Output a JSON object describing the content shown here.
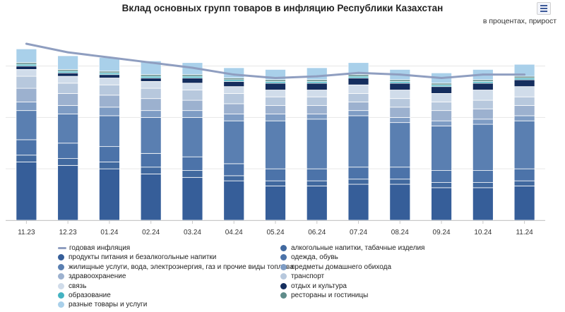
{
  "title": "Вклад основных групп товаров в инфляцию Республики Казахстан",
  "subtitle": "в процентах, прирост",
  "menu_icon": "hamburger-menu-icon",
  "chart_data": {
    "type": "bar",
    "stacked": true,
    "categories": [
      "11.23",
      "12.23",
      "01.24",
      "02.24",
      "03.24",
      "04.24",
      "05.24",
      "06.24",
      "07.24",
      "08.24",
      "09.24",
      "10.24",
      "11.24"
    ],
    "ylim": [
      0,
      11
    ],
    "grid": true,
    "legend_position": "bottom",
    "line": {
      "name": "годовая инфляция",
      "color": "#8f9ec0",
      "values": [
        10.3,
        9.8,
        9.5,
        9.2,
        8.9,
        8.5,
        8.3,
        8.4,
        8.6,
        8.5,
        8.3,
        8.5,
        8.5
      ]
    },
    "series": [
      {
        "name": "продукты питания и безалкогольные напитки",
        "color": "#365e99",
        "values": [
          3.4,
          3.2,
          3.0,
          2.7,
          2.5,
          2.3,
          2.0,
          2.0,
          2.1,
          2.1,
          1.9,
          1.9,
          2.0
        ]
      },
      {
        "name": "алкогольные напитки, табачные изделия",
        "color": "#41699f",
        "values": [
          0.4,
          0.4,
          0.4,
          0.4,
          0.4,
          0.3,
          0.3,
          0.3,
          0.3,
          0.3,
          0.3,
          0.3,
          0.3
        ]
      },
      {
        "name": "одежда, обувь",
        "color": "#4c73a9",
        "values": [
          0.9,
          0.9,
          0.9,
          0.8,
          0.8,
          0.7,
          0.7,
          0.7,
          0.7,
          0.7,
          0.7,
          0.7,
          0.7
        ]
      },
      {
        "name": "жилищные услуги, вода, электроэнергия, газ и прочие виды топлива",
        "color": "#5a7fb1",
        "values": [
          1.7,
          1.7,
          1.8,
          2.1,
          2.3,
          2.5,
          2.8,
          2.9,
          3.0,
          2.6,
          2.6,
          2.7,
          2.8
        ]
      },
      {
        "name": "предметы домашнего обихода",
        "color": "#7e9cc4",
        "values": [
          0.5,
          0.5,
          0.5,
          0.4,
          0.4,
          0.4,
          0.4,
          0.3,
          0.3,
          0.3,
          0.3,
          0.3,
          0.3
        ]
      },
      {
        "name": "здравоохранение",
        "color": "#9cb1cf",
        "values": [
          0.8,
          0.7,
          0.7,
          0.7,
          0.6,
          0.6,
          0.5,
          0.5,
          0.5,
          0.6,
          0.6,
          0.6,
          0.6
        ]
      },
      {
        "name": "транспорт",
        "color": "#b7c8dd",
        "values": [
          0.7,
          0.6,
          0.6,
          0.6,
          0.6,
          0.6,
          0.5,
          0.5,
          0.5,
          0.5,
          0.5,
          0.5,
          0.5
        ]
      },
      {
        "name": "связь",
        "color": "#d0dcea",
        "values": [
          0.4,
          0.4,
          0.4,
          0.4,
          0.4,
          0.4,
          0.4,
          0.4,
          0.5,
          0.5,
          0.5,
          0.6,
          0.6
        ]
      },
      {
        "name": "отдых и культура",
        "color": "#152e5e",
        "values": [
          0.2,
          0.2,
          0.2,
          0.2,
          0.3,
          0.3,
          0.4,
          0.4,
          0.4,
          0.4,
          0.4,
          0.4,
          0.4
        ]
      },
      {
        "name": "образование",
        "color": "#44b3c2",
        "values": [
          0.1,
          0.1,
          0.1,
          0.1,
          0.1,
          0.1,
          0.1,
          0.1,
          0.1,
          0.1,
          0.1,
          0.1,
          0.1
        ]
      },
      {
        "name": "рестораны и гостиницы",
        "color": "#5f8c8a",
        "values": [
          0.1,
          0.1,
          0.1,
          0.1,
          0.1,
          0.1,
          0.1,
          0.1,
          0.1,
          0.1,
          0.1,
          0.1,
          0.1
        ]
      },
      {
        "name": "разные товары и услуги",
        "color": "#a9d0ea",
        "values": [
          0.8,
          0.8,
          0.8,
          0.8,
          0.7,
          0.6,
          0.6,
          0.7,
          0.7,
          0.6,
          0.6,
          0.6,
          0.7
        ]
      }
    ]
  }
}
